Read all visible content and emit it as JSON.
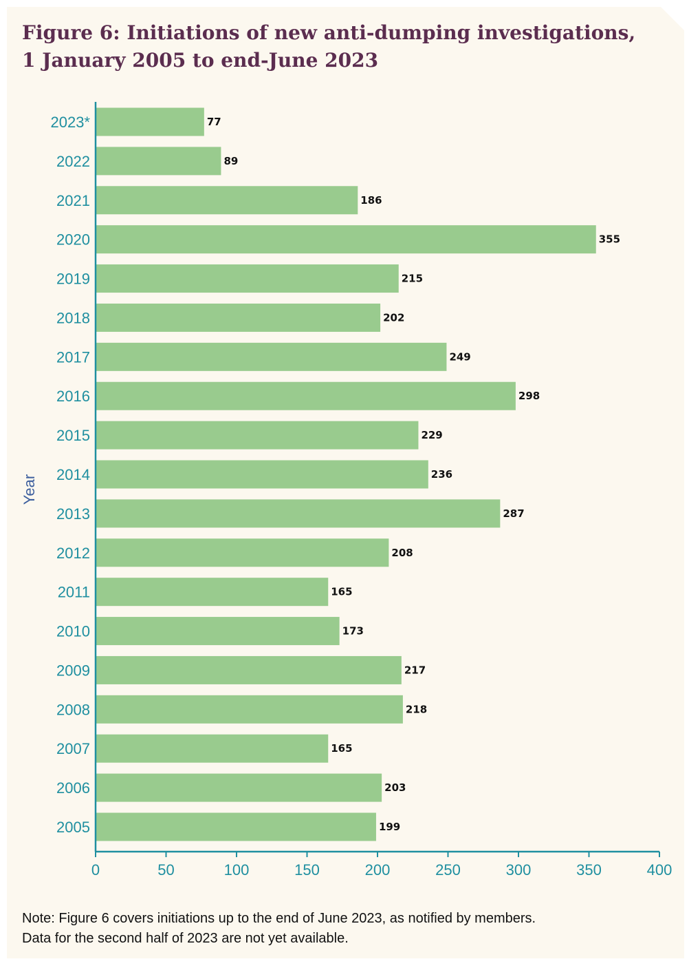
{
  "figure": {
    "title_prefix": "Figure 6:",
    "title_line1": "Initiations of new anti-dumping investigations,",
    "title_line2": "1 January 2005 to end-June 2023"
  },
  "note": {
    "line1": "Note: Figure 6 covers initiations up to the end of June 2023, as notified by members.",
    "line2": "Data for the second half of 2023 are not yet available."
  },
  "colors": {
    "background": "#fcf8ef",
    "bar": "#99cb8e",
    "axis": "#1f8fa0",
    "tick_label": "#1f8fa0",
    "axis_title": "#3d5f9e",
    "value_label": "#111111",
    "title": "#5b2d4f"
  },
  "chart_data": {
    "type": "bar",
    "orientation": "horizontal",
    "categories": [
      "2023*",
      "2022",
      "2021",
      "2020",
      "2019",
      "2018",
      "2017",
      "2016",
      "2015",
      "2014",
      "2013",
      "2012",
      "2011",
      "2010",
      "2009",
      "2008",
      "2007",
      "2006",
      "2005"
    ],
    "values": [
      77,
      89,
      186,
      355,
      215,
      202,
      249,
      298,
      229,
      236,
      287,
      208,
      165,
      173,
      217,
      218,
      165,
      203,
      199
    ],
    "ylabel": "Year",
    "xlabel": "",
    "xlim": [
      0,
      400
    ],
    "xticks": [
      0,
      50,
      100,
      150,
      200,
      250,
      300,
      350,
      400
    ],
    "grid": false,
    "legend": "none",
    "data_labels": true
  }
}
